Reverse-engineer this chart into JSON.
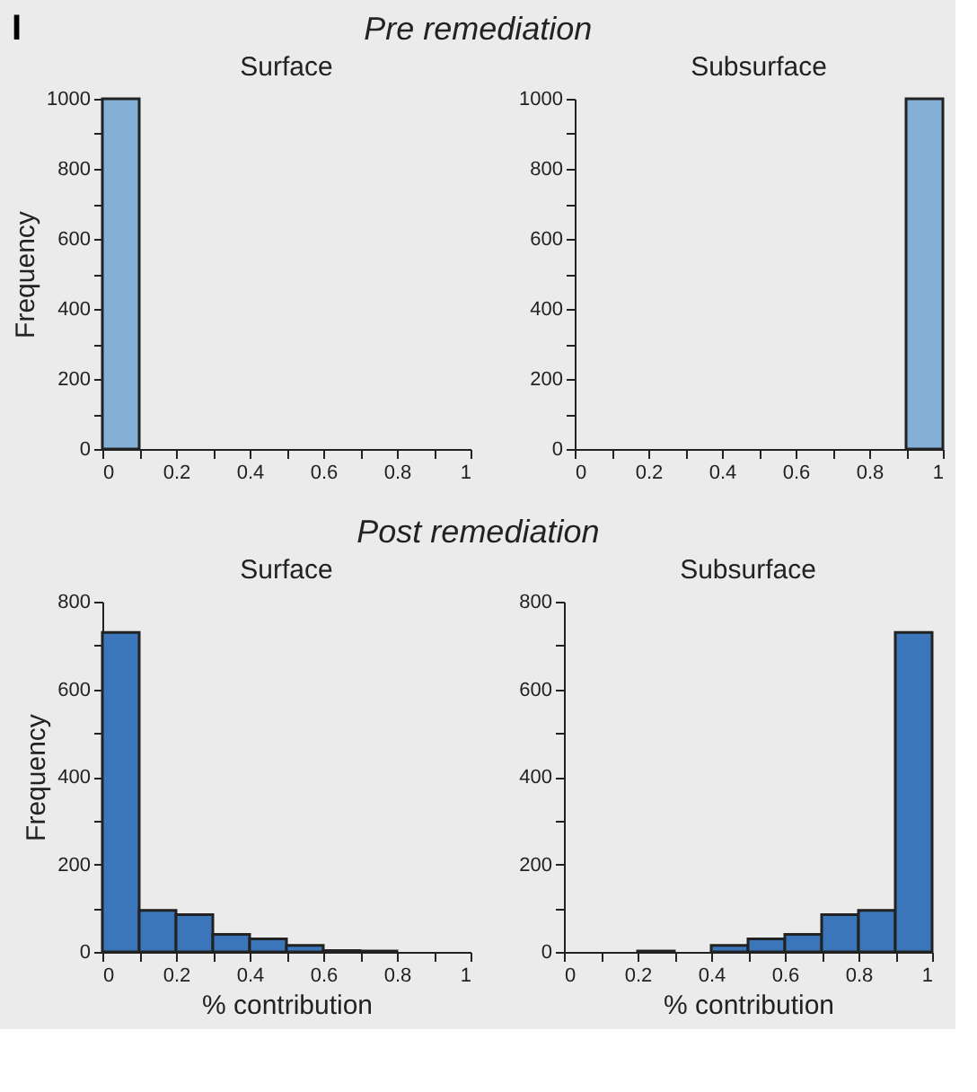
{
  "chart_data": [
    {
      "type": "histogram",
      "title": "Pre remediation",
      "subtitle": "Surface",
      "ylabel": "Frequency",
      "annotations": [
        "I"
      ],
      "bins": [
        0,
        0.1,
        0.2,
        0.3,
        0.4,
        0.5,
        0.6,
        0.7,
        0.8,
        0.9,
        1
      ],
      "values": [
        1000,
        0,
        0,
        0,
        0,
        0,
        0,
        0,
        0,
        0
      ],
      "color": "#84b0d8",
      "xlim": [
        0,
        1
      ],
      "xticks": [
        0,
        {
          "value": 0.1,
          "label": null
        },
        0.2,
        {
          "value": 0.3,
          "label": null
        },
        0.4,
        {
          "value": 0.5,
          "label": null
        },
        0.6,
        {
          "value": 0.7,
          "label": null
        },
        0.8,
        {
          "value": 0.9,
          "label": null
        },
        1
      ],
      "ylim": [
        0,
        1000
      ],
      "yticks": [
        0,
        {
          "value": 100,
          "label": null
        },
        200,
        {
          "value": 300,
          "label": null
        },
        400,
        {
          "value": 500,
          "label": null
        },
        600,
        {
          "value": 700,
          "label": null
        },
        800,
        {
          "value": 900,
          "label": null
        },
        1000
      ]
    },
    {
      "type": "histogram",
      "subtitle": "Subsurface",
      "bins": [
        0,
        0.1,
        0.2,
        0.3,
        0.4,
        0.5,
        0.6,
        0.7,
        0.8,
        0.9,
        1
      ],
      "values": [
        0,
        0,
        0,
        0,
        0,
        0,
        0,
        0,
        0,
        1000
      ],
      "color": "#84b0d8",
      "xlim": [
        0,
        1
      ],
      "xticks": [
        0,
        {
          "value": 0.1,
          "label": null
        },
        0.2,
        {
          "value": 0.3,
          "label": null
        },
        0.4,
        {
          "value": 0.5,
          "label": null
        },
        0.6,
        {
          "value": 0.7,
          "label": null
        },
        0.8,
        {
          "value": 0.9,
          "label": null
        },
        1
      ],
      "ylim": [
        0,
        1000
      ],
      "yticks": [
        0,
        {
          "value": 100,
          "label": null
        },
        200,
        {
          "value": 300,
          "label": null
        },
        400,
        {
          "value": 500,
          "label": null
        },
        600,
        {
          "value": 700,
          "label": null
        },
        800,
        {
          "value": 900,
          "label": null
        },
        1000
      ]
    },
    {
      "type": "histogram",
      "title": "Post remediation",
      "subtitle": "Surface",
      "ylabel": "Frequency",
      "xlabel": "% contribution",
      "bins": [
        0,
        0.1,
        0.2,
        0.3,
        0.4,
        0.5,
        0.6,
        0.7,
        0.8,
        0.9,
        1
      ],
      "values": [
        730,
        95,
        85,
        40,
        30,
        15,
        3,
        2,
        0,
        0
      ],
      "color": "#3a76b9",
      "xlim": [
        0,
        1
      ],
      "xticks": [
        0,
        {
          "value": 0.1,
          "label": null
        },
        0.2,
        {
          "value": 0.3,
          "label": null
        },
        0.4,
        {
          "value": 0.5,
          "label": null
        },
        0.6,
        {
          "value": 0.7,
          "label": null
        },
        0.8,
        {
          "value": 0.9,
          "label": null
        },
        1
      ],
      "ylim": [
        0,
        800
      ],
      "yticks": [
        0,
        {
          "value": 100,
          "label": null
        },
        200,
        {
          "value": 300,
          "label": null
        },
        400,
        {
          "value": 500,
          "label": null
        },
        600,
        {
          "value": 700,
          "label": null
        },
        800
      ]
    },
    {
      "type": "histogram",
      "subtitle": "Subsurface",
      "xlabel": "% contribution",
      "bins": [
        0,
        0.1,
        0.2,
        0.3,
        0.4,
        0.5,
        0.6,
        0.7,
        0.8,
        0.9,
        1
      ],
      "values": [
        0,
        0,
        2,
        0,
        15,
        30,
        40,
        85,
        95,
        730
      ],
      "color": "#3a76b9",
      "xlim": [
        0,
        1
      ],
      "xticks": [
        0,
        {
          "value": 0.1,
          "label": null
        },
        0.2,
        {
          "value": 0.3,
          "label": null
        },
        0.4,
        {
          "value": 0.5,
          "label": null
        },
        0.6,
        {
          "value": 0.7,
          "label": null
        },
        0.8,
        {
          "value": 0.9,
          "label": null
        },
        1
      ],
      "ylim": [
        0,
        800
      ],
      "yticks": [
        0,
        {
          "value": 100,
          "label": null
        },
        200,
        {
          "value": 300,
          "label": null
        },
        400,
        {
          "value": 500,
          "label": null
        },
        600,
        {
          "value": 700,
          "label": null
        },
        800
      ]
    }
  ]
}
